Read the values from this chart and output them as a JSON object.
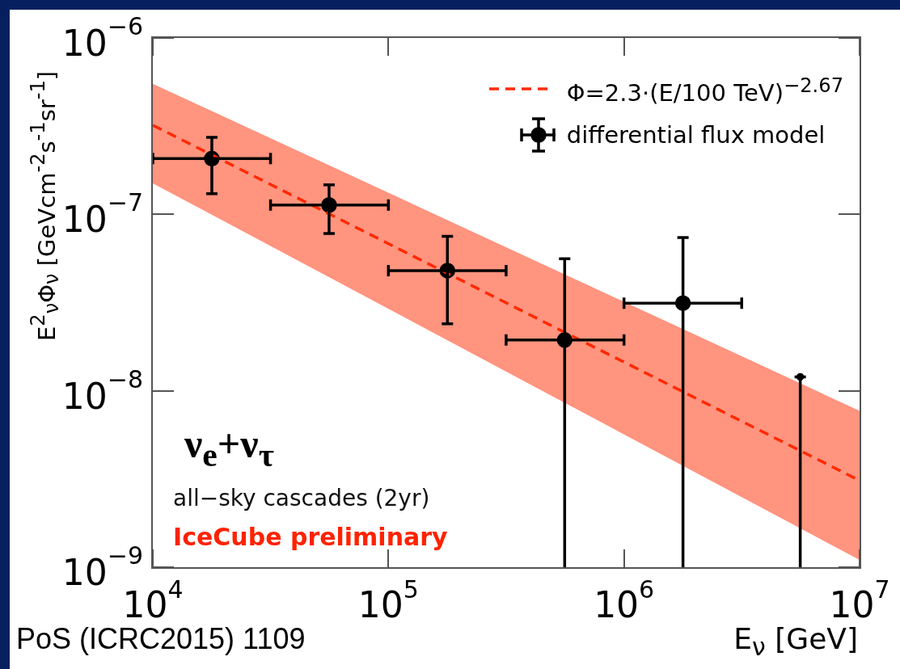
{
  "chart_data": {
    "type": "scatter",
    "xlabel": "E$_{ν}$ [GeV]",
    "ylabel": "E$^{2}$$_{ν}$Φ$_{ν}$ [GeVcm$^{-2}$s$^{-1}$sr$^{-1}$]",
    "annotations": [
      "ν$_{e}$+ν$_{τ}$",
      "all−sky cascades (2yr)",
      "IceCube preliminary",
      "PoS (ICRC2015) 1109"
    ],
    "log": "xy",
    "xlim": [
      10000,
      10000000
    ],
    "ylim": [
      1e-09,
      1e-06
    ],
    "xticks": [
      {
        "value": 10000,
        "label": "10$^{4}$"
      },
      {
        "value": 100000,
        "label": "10$^{5}$"
      },
      {
        "value": 1000000,
        "label": "10$^{6}$"
      },
      {
        "value": 10000000,
        "label": "10$^{7}$"
      }
    ],
    "yticks": [
      {
        "value": 1e-09,
        "label": "10$^{−9}$"
      },
      {
        "value": 1e-08,
        "label": "10$^{−8}$"
      },
      {
        "value": 1e-07,
        "label": "10$^{−7}$"
      },
      {
        "value": 1e-06,
        "label": "10$^{−6}$"
      }
    ],
    "legend": "top right",
    "series": [
      {
        "name": "Φ=2.3·(E/100 TeV)$^{−2.67}$",
        "type": "line",
        "color": "#ff2a00",
        "line_style": "dashed",
        "marker": "none",
        "x": [
          10000,
          10000000
        ],
        "values": [
          3.2e-07,
          3.1e-09
        ],
        "lower": [
          1.5e-07,
          1.1e-09
        ],
        "upper": [
          5.5e-07,
          7.7e-09
        ]
      },
      {
        "name": "differential flux model",
        "color": "#000000",
        "marker": "circle",
        "x": [
          17800,
          56000,
          178000,
          560000,
          1780000
        ],
        "values": [
          2.07e-07,
          1.13e-07,
          4.8e-08,
          1.94e-08,
          3.14e-08
        ],
        "errors": [
          [
            1.31e-07,
            2.73e-07
          ],
          [
            7.8e-08,
            1.47e-07
          ],
          [
            2.4e-08,
            7.5e-08
          ],
          [
            1e-09,
            5.6e-08
          ],
          [
            1e-09,
            7.4e-08
          ]
        ],
        "xerrors": [
          [
            10000,
            31600
          ],
          [
            31600,
            100000
          ],
          [
            100000,
            316000
          ],
          [
            316000,
            1000000
          ],
          [
            1000000,
            3160000
          ]
        ]
      },
      {
        "color": "#000000",
        "x": [
          5600000
        ],
        "values": [
          1.2e-08
        ],
        "errors": [
          [
            1e-09,
            1.2e-08
          ]
        ]
      }
    ]
  }
}
